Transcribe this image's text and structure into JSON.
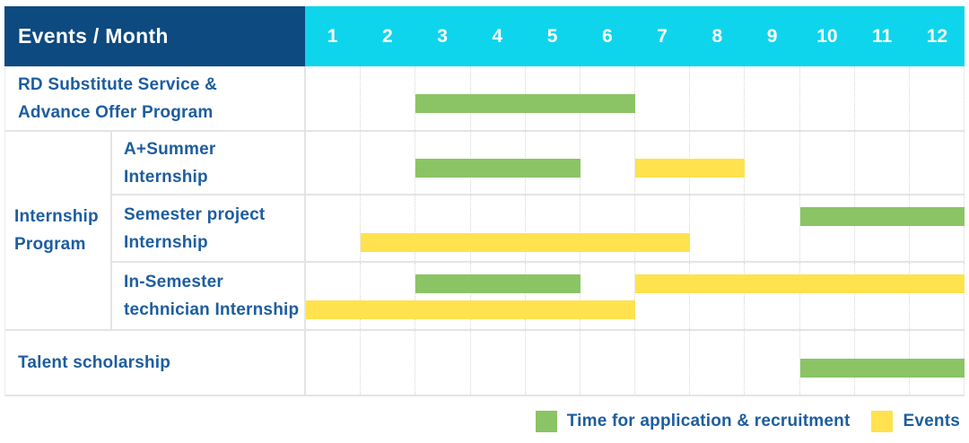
{
  "header": {
    "title": "Events / Month",
    "months": [
      "1",
      "2",
      "3",
      "4",
      "5",
      "6",
      "7",
      "8",
      "9",
      "10",
      "11",
      "12"
    ]
  },
  "group_label": "Internship\nProgram",
  "rows": [
    {
      "label": "RD Substitute Service &\nAdvance Offer Program",
      "bars": [
        {
          "color": "green",
          "start": 3,
          "end": 6,
          "lane": "mid"
        }
      ]
    },
    {
      "label": "A+Summer\nInternship",
      "bars": [
        {
          "color": "green",
          "start": 3,
          "end": 5,
          "lane": "mid"
        },
        {
          "color": "yellow",
          "start": 7,
          "end": 8,
          "lane": "mid"
        }
      ]
    },
    {
      "label": "Semester project\nInternship",
      "bars": [
        {
          "color": "green",
          "start": 10,
          "end": 12,
          "lane": "top"
        },
        {
          "color": "yellow",
          "start": 2,
          "end": 7,
          "lane": "bottom"
        }
      ]
    },
    {
      "label": "In-Semester\ntechnician Internship",
      "bars": [
        {
          "color": "green",
          "start": 3,
          "end": 5,
          "lane": "top"
        },
        {
          "color": "yellow",
          "start": 7,
          "end": 12,
          "lane": "top"
        },
        {
          "color": "yellow",
          "start": 1,
          "end": 6,
          "lane": "bottom"
        }
      ]
    },
    {
      "label": "Talent scholarship",
      "bars": [
        {
          "color": "green",
          "start": 10,
          "end": 12,
          "lane": "mid"
        }
      ]
    }
  ],
  "legend": {
    "items": [
      {
        "label": "Time for application & recruitment",
        "swatch": "green"
      },
      {
        "label": "Events",
        "swatch": "yellow"
      }
    ]
  },
  "colors": {
    "navy": "#0d4a80",
    "cyan": "#0fd5ec",
    "green": "#8bc464",
    "yellow": "#ffe24d",
    "blue": "#1d5d9f",
    "line": "#e4e4e4",
    "dot": "#d6d6d6"
  },
  "chart_data": {
    "type": "table",
    "subtype": "gantt",
    "title": "Events / Month",
    "x_axis": {
      "label": "Month",
      "ticks": [
        1,
        2,
        3,
        4,
        5,
        6,
        7,
        8,
        9,
        10,
        11,
        12
      ],
      "range": [
        1,
        12
      ]
    },
    "grid": true,
    "legend_position": "bottom-right",
    "rows": [
      {
        "category": "RD Substitute Service & Advance Offer Program",
        "group": null,
        "spans": [
          {
            "kind": "Time for application & recruitment",
            "months": [
              3,
              6
            ]
          }
        ]
      },
      {
        "category": "A+Summer Internship",
        "group": "Internship Program",
        "spans": [
          {
            "kind": "Time for application & recruitment",
            "months": [
              3,
              5
            ]
          },
          {
            "kind": "Events",
            "months": [
              7,
              8
            ]
          }
        ]
      },
      {
        "category": "Semester project Internship",
        "group": "Internship Program",
        "spans": [
          {
            "kind": "Time for application & recruitment",
            "months": [
              10,
              12
            ]
          },
          {
            "kind": "Events",
            "months": [
              2,
              7
            ]
          }
        ]
      },
      {
        "category": "In-Semester technician Internship",
        "group": "Internship Program",
        "spans": [
          {
            "kind": "Time for application & recruitment",
            "months": [
              3,
              5
            ]
          },
          {
            "kind": "Events",
            "months": [
              1,
              6
            ]
          },
          {
            "kind": "Events",
            "months": [
              7,
              12
            ]
          }
        ]
      },
      {
        "category": "Talent scholarship",
        "group": null,
        "spans": [
          {
            "kind": "Time for application & recruitment",
            "months": [
              10,
              12
            ]
          }
        ]
      }
    ],
    "legend_entries": [
      {
        "label": "Time for application & recruitment",
        "color": "#8bc464"
      },
      {
        "label": "Events",
        "color": "#ffe24d"
      }
    ]
  }
}
